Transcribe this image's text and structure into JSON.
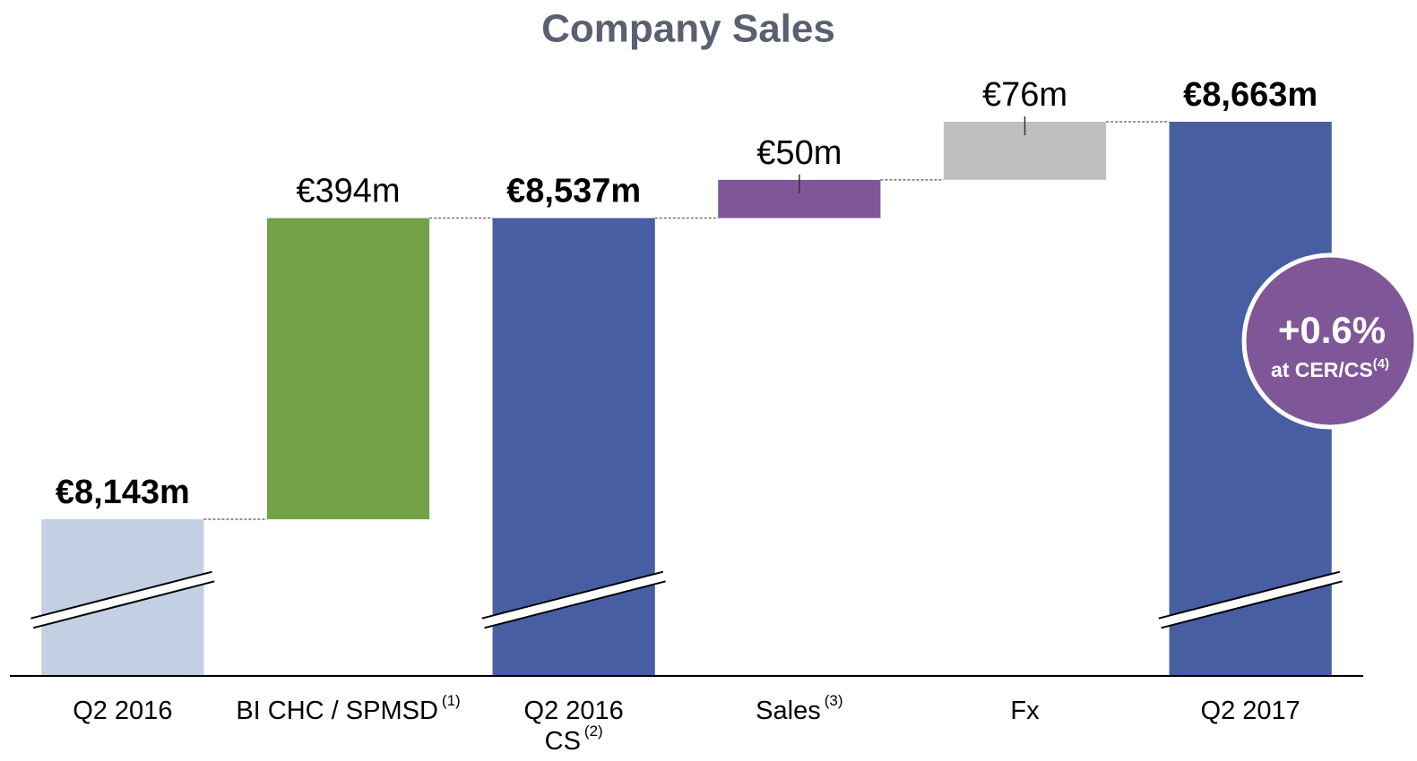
{
  "chart_data": {
    "type": "waterfall",
    "title": "Company Sales",
    "categories": [
      [
        "Q2 2016"
      ],
      [
        "BI CHC / SPMSD"
      ],
      [
        "Q2 2016",
        "CS"
      ],
      [
        "Sales"
      ],
      [
        "Fx"
      ],
      [
        "Q2 2017"
      ]
    ],
    "footnotes": [
      null,
      "(1)",
      "(2)",
      "(3)",
      null,
      null
    ],
    "values": [
      8143,
      394,
      8537,
      50,
      76,
      8663
    ],
    "value_labels": [
      "€8,143m",
      "€394m",
      "€8,537m",
      "€50m",
      "€76m",
      "€8,663m"
    ],
    "totals": [
      true,
      false,
      true,
      false,
      false,
      true
    ],
    "colors": [
      "#c3cfe2",
      "#72a34a",
      "#475ea3",
      "#7f5799",
      "#bfbfbf",
      "#475ea3"
    ],
    "badge": {
      "text": "+0.6%",
      "subtext": "at CER/CS",
      "footnote": "(4)",
      "color": "#7f5799"
    }
  }
}
